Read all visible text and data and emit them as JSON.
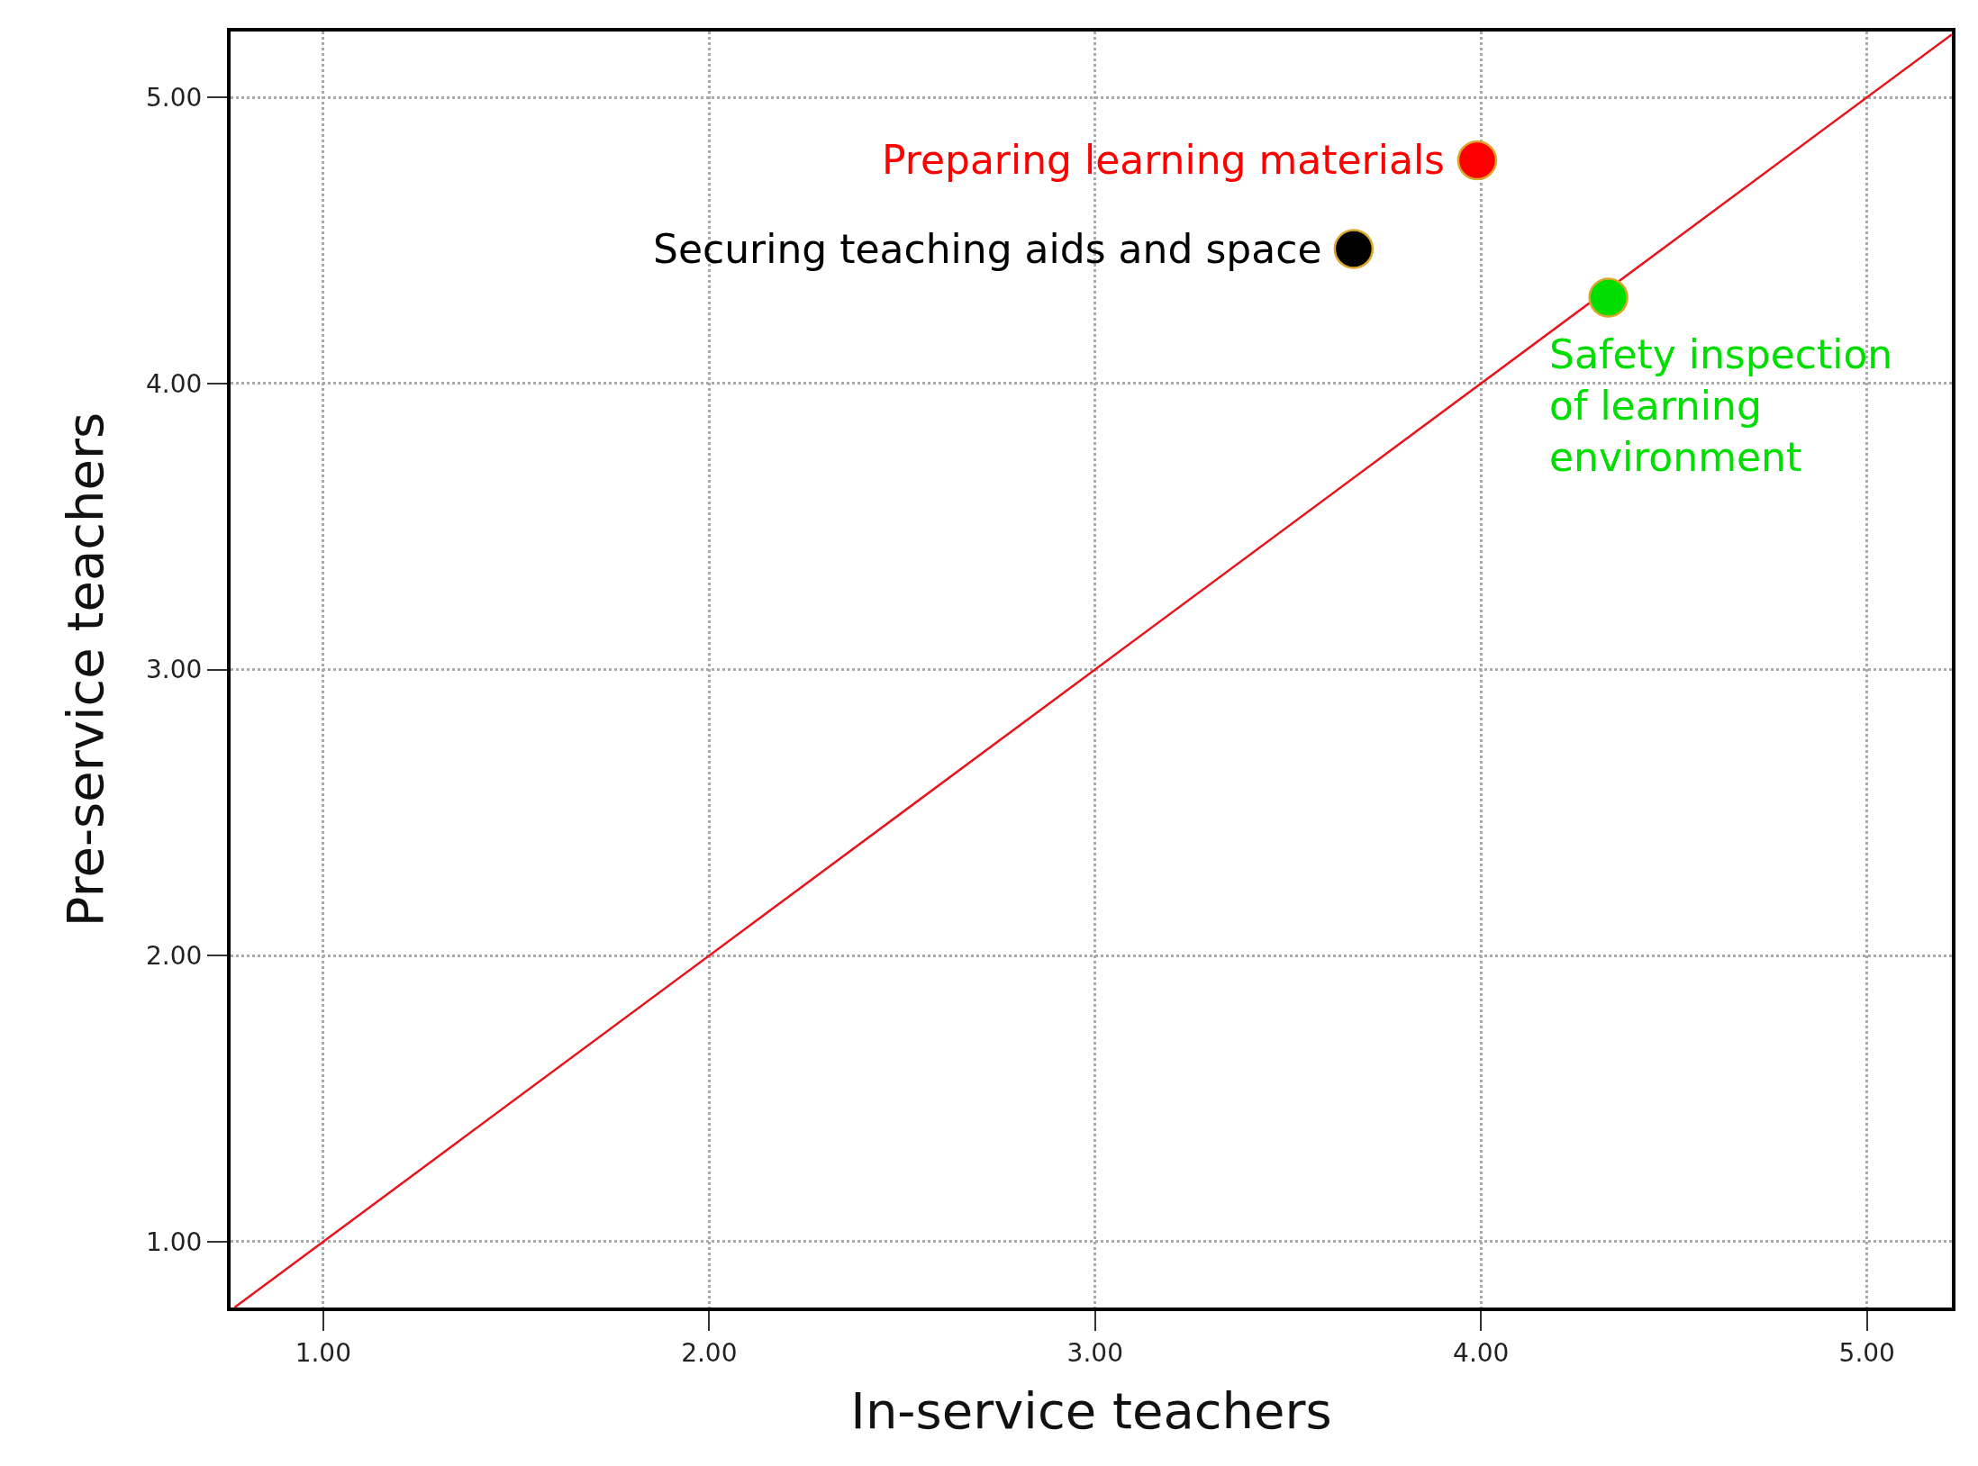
{
  "chart_data": {
    "type": "scatter",
    "xlabel": "In-service teachers",
    "ylabel": "Pre-service teachers",
    "xlim": [
      0.76,
      5.22
    ],
    "ylim": [
      0.77,
      5.23
    ],
    "xticks": [
      {
        "value": 1,
        "label": "1.00"
      },
      {
        "value": 2,
        "label": "2.00"
      },
      {
        "value": 3,
        "label": "3.00"
      },
      {
        "value": 4,
        "label": "4.00"
      },
      {
        "value": 5,
        "label": "5.00"
      }
    ],
    "yticks": [
      {
        "value": 1,
        "label": "1.00"
      },
      {
        "value": 2,
        "label": "2.00"
      },
      {
        "value": 3,
        "label": "3.00"
      },
      {
        "value": 4,
        "label": "4.00"
      },
      {
        "value": 5,
        "label": "5.00"
      }
    ],
    "grid": true,
    "marker": "circle",
    "series": [
      {
        "type": "line",
        "marker": "none",
        "color": "#e8141c",
        "x": [
          0.77,
          5.22
        ],
        "values": [
          0.77,
          5.22
        ]
      },
      {
        "color": "#ff0000",
        "x": [
          3.99
        ],
        "values": [
          4.78
        ]
      },
      {
        "color": "#000000",
        "x": [
          3.67
        ],
        "values": [
          4.47
        ]
      },
      {
        "color": "#00dd00",
        "x": [
          4.33
        ],
        "values": [
          4.3
        ]
      }
    ],
    "annotations": [
      {
        "text": "Preparing learning materials",
        "x": 3.99,
        "y": 4.78
      },
      {
        "text": "Securing teaching aids and space",
        "x": 3.67,
        "y": 4.47
      },
      {
        "text": "Safety inspection\nof learning\nenvironment",
        "x": 4.33,
        "y": 4.3
      }
    ]
  }
}
